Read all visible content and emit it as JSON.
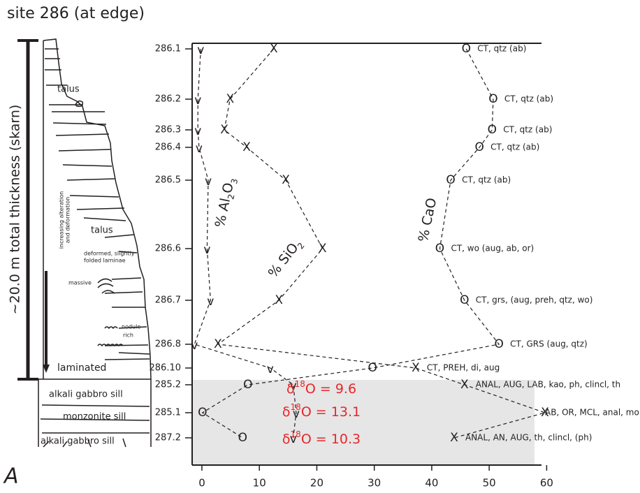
{
  "chart_data": {
    "type": "line",
    "title": "site 286 (at edge)",
    "panel_label": "A",
    "categories": [
      "286.1",
      "286.2",
      "286.3",
      "286.4",
      "286.5",
      "286.6",
      "286.7",
      "286.8",
      "286.10",
      "285.2",
      "285.1",
      "287.2"
    ],
    "series": [
      {
        "name": "% Al2O3",
        "marker": "v",
        "color": "#231f20",
        "values": [
          -0.2,
          -0.7,
          -0.7,
          -0.5,
          1.1,
          0.9,
          1.5,
          -1.3,
          11.9,
          15.9,
          16.4,
          15.9
        ]
      },
      {
        "name": "% SiO2",
        "marker": "x",
        "color": "#231f20",
        "values": [
          12.5,
          4.9,
          3.9,
          7.8,
          14.6,
          21.0,
          13.4,
          2.8,
          37.2,
          45.7,
          59.7,
          43.9
        ]
      },
      {
        "name": "% CaO",
        "marker": "o",
        "color": "#231f20",
        "values": [
          46.0,
          50.7,
          50.5,
          48.3,
          43.3,
          41.4,
          45.7,
          51.7,
          29.7,
          8.0,
          0.1,
          7.1
        ]
      }
    ],
    "annotations": [
      "CT,  qtz (ab)",
      "CT,  qtz (ab)",
      "CT,  qtz (ab)",
      "CT,  qtz (ab)",
      "CT,  qtz (ab)",
      "CT, wo (aug, ab, or)",
      "CT, grs, (aug, preh, qtz, wo)",
      "CT,  GRS (aug, qtz)",
      "CT, PREH, di, aug",
      "ANAL, AUG, LAB, kao, ph, clincl, th",
      "AB, OR, MCL, anal, mont",
      "ANAL, AN, AUG, th, clincl, (ph)"
    ],
    "isotope_labels": [
      {
        "prefix": "δ",
        "sup": "18",
        "text": "O = 9.6"
      },
      {
        "prefix": "δ",
        "sup": "18",
        "text": "O = 13.1"
      },
      {
        "prefix": "δ",
        "sup": "18",
        "text": "O = 10.3"
      }
    ],
    "xlim": [
      -1.7,
      59.1
    ],
    "xticks": [
      0,
      10,
      20,
      30,
      40,
      50,
      60
    ],
    "column": {
      "thickness": "~20.0 m total thickness (skarn)",
      "trend": [
        "increasing alteration",
        "and deformation"
      ],
      "units": [
        "talus",
        "talus",
        "deformed, slightly",
        "folded laminae",
        "massive",
        "nodule",
        "rich",
        "laminated",
        "alkali gabbro sill",
        "monzonite sill",
        "alkali gabbro sill"
      ]
    }
  }
}
